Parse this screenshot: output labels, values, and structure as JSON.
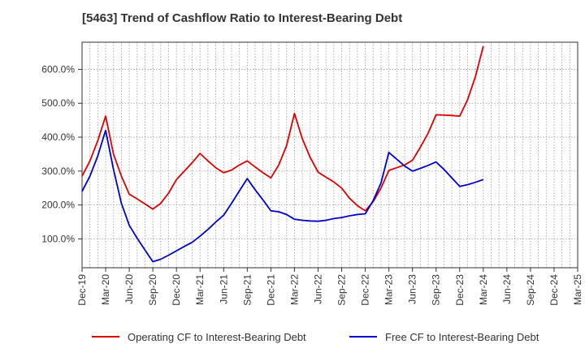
{
  "chart_data": {
    "type": "line",
    "title": "[5463]  Trend of Cashflow Ratio to Interest-Bearing Debt",
    "xlabel": "",
    "ylabel": "",
    "grid": true,
    "legend_position": "bottom",
    "x_ticks": [
      "Dec-19",
      "Mar-20",
      "Jun-20",
      "Sep-20",
      "Dec-20",
      "Mar-21",
      "Jun-21",
      "Sep-21",
      "Dec-21",
      "Mar-22",
      "Jun-22",
      "Sep-22",
      "Dec-22",
      "Mar-23",
      "Jun-23",
      "Sep-23",
      "Dec-23",
      "Mar-24",
      "Jun-24",
      "Sep-24",
      "Dec-24",
      "Mar-25"
    ],
    "y_ticks": [
      "100.0%",
      "200.0%",
      "300.0%",
      "400.0%",
      "500.0%",
      "600.0%"
    ],
    "y_tick_values": [
      100,
      200,
      300,
      400,
      500,
      600
    ],
    "ylim": [
      15,
      680
    ],
    "x_unit": "month index from Dec-19",
    "xlim": [
      0,
      63
    ],
    "series": [
      {
        "name": "Operating CF to Interest-Bearing Debt",
        "color": "#dd0000",
        "points": [
          [
            0,
            285
          ],
          [
            1,
            330
          ],
          [
            2,
            390
          ],
          [
            3,
            462
          ],
          [
            4,
            350
          ],
          [
            5,
            285
          ],
          [
            6,
            232
          ],
          [
            7,
            218
          ],
          [
            8,
            203
          ],
          [
            9,
            188
          ],
          [
            10,
            205
          ],
          [
            11,
            235
          ],
          [
            12,
            275
          ],
          [
            13,
            300
          ],
          [
            14,
            325
          ],
          [
            15,
            352
          ],
          [
            16,
            330
          ],
          [
            17,
            310
          ],
          [
            18,
            295
          ],
          [
            19,
            303
          ],
          [
            20,
            318
          ],
          [
            21,
            330
          ],
          [
            22,
            312
          ],
          [
            23,
            295
          ],
          [
            24,
            280
          ],
          [
            25,
            318
          ],
          [
            26,
            375
          ],
          [
            27,
            470
          ],
          [
            28,
            395
          ],
          [
            29,
            340
          ],
          [
            30,
            297
          ],
          [
            31,
            282
          ],
          [
            32,
            268
          ],
          [
            33,
            250
          ],
          [
            34,
            220
          ],
          [
            35,
            198
          ],
          [
            36,
            183
          ],
          [
            37,
            210
          ],
          [
            38,
            250
          ],
          [
            39,
            302
          ],
          [
            40,
            310
          ],
          [
            41,
            318
          ],
          [
            42,
            332
          ],
          [
            43,
            370
          ],
          [
            44,
            412
          ],
          [
            45,
            466
          ],
          [
            46,
            465
          ],
          [
            47,
            464
          ],
          [
            48,
            462
          ],
          [
            49,
            510
          ],
          [
            50,
            578
          ],
          [
            51,
            668
          ]
        ]
      },
      {
        "name": "Free CF to Interest-Bearing Debt",
        "color": "#0000cc",
        "points": [
          [
            0,
            240
          ],
          [
            1,
            285
          ],
          [
            2,
            345
          ],
          [
            3,
            420
          ],
          [
            4,
            305
          ],
          [
            5,
            205
          ],
          [
            6,
            140
          ],
          [
            7,
            102
          ],
          [
            8,
            67
          ],
          [
            9,
            33
          ],
          [
            10,
            40
          ],
          [
            11,
            52
          ],
          [
            12,
            65
          ],
          [
            13,
            78
          ],
          [
            14,
            90
          ],
          [
            15,
            108
          ],
          [
            16,
            128
          ],
          [
            17,
            150
          ],
          [
            18,
            170
          ],
          [
            19,
            205
          ],
          [
            20,
            242
          ],
          [
            21,
            278
          ],
          [
            22,
            245
          ],
          [
            23,
            215
          ],
          [
            24,
            183
          ],
          [
            25,
            180
          ],
          [
            26,
            172
          ],
          [
            27,
            158
          ],
          [
            28,
            155
          ],
          [
            29,
            153
          ],
          [
            30,
            152
          ],
          [
            31,
            155
          ],
          [
            32,
            160
          ],
          [
            33,
            163
          ],
          [
            34,
            168
          ],
          [
            35,
            172
          ],
          [
            36,
            174
          ],
          [
            37,
            213
          ],
          [
            38,
            265
          ],
          [
            39,
            355
          ],
          [
            40,
            335
          ],
          [
            41,
            315
          ],
          [
            42,
            300
          ],
          [
            43,
            308
          ],
          [
            44,
            317
          ],
          [
            45,
            327
          ],
          [
            46,
            305
          ],
          [
            47,
            280
          ],
          [
            48,
            255
          ],
          [
            49,
            260
          ],
          [
            50,
            267
          ],
          [
            51,
            275
          ]
        ]
      }
    ]
  }
}
